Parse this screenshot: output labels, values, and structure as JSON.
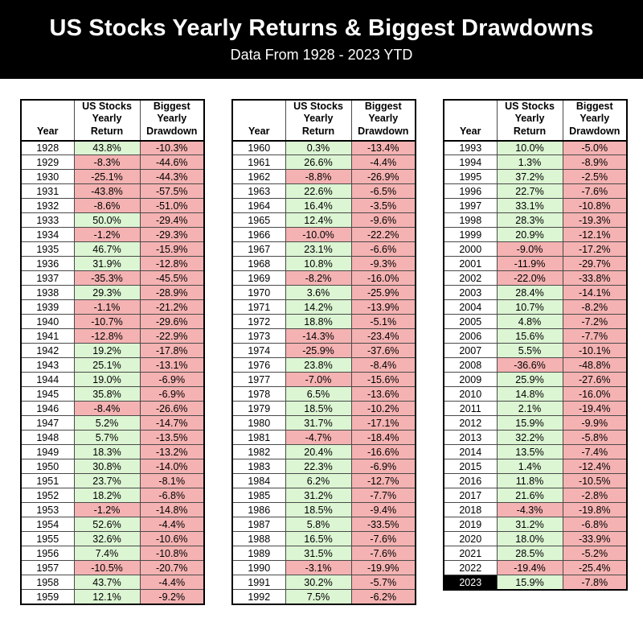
{
  "header": {
    "title": "US Stocks Yearly Returns & Biggest Drawdowns",
    "subtitle": "Data From 1928 - 2023 YTD"
  },
  "colors": {
    "banner_bg": "#000000",
    "banner_text": "#ffffff",
    "positive_bg": "#dcf5d3",
    "negative_bg": "#f5b2b2",
    "highlight_bg": "#000000",
    "highlight_text": "#ffffff"
  },
  "chart_data": {
    "type": "table",
    "title": "US Stocks Yearly Returns & Biggest Drawdowns",
    "subtitle": "Data From 1928 - 2023 YTD",
    "columns": [
      "Year",
      "US Stocks Yearly Return",
      "Biggest Yearly Drawdown"
    ],
    "column_headers_display": [
      "Year",
      "US Stocks\nYearly\nReturn",
      "Biggest\nYearly\nDrawdown"
    ],
    "highlight_year": "2023",
    "tables": [
      {
        "rows": [
          [
            "1928",
            "43.8%",
            "-10.3%"
          ],
          [
            "1929",
            "-8.3%",
            "-44.6%"
          ],
          [
            "1930",
            "-25.1%",
            "-44.3%"
          ],
          [
            "1931",
            "-43.8%",
            "-57.5%"
          ],
          [
            "1932",
            "-8.6%",
            "-51.0%"
          ],
          [
            "1933",
            "50.0%",
            "-29.4%"
          ],
          [
            "1934",
            "-1.2%",
            "-29.3%"
          ],
          [
            "1935",
            "46.7%",
            "-15.9%"
          ],
          [
            "1936",
            "31.9%",
            "-12.8%"
          ],
          [
            "1937",
            "-35.3%",
            "-45.5%"
          ],
          [
            "1938",
            "29.3%",
            "-28.9%"
          ],
          [
            "1939",
            "-1.1%",
            "-21.2%"
          ],
          [
            "1940",
            "-10.7%",
            "-29.6%"
          ],
          [
            "1941",
            "-12.8%",
            "-22.9%"
          ],
          [
            "1942",
            "19.2%",
            "-17.8%"
          ],
          [
            "1943",
            "25.1%",
            "-13.1%"
          ],
          [
            "1944",
            "19.0%",
            "-6.9%"
          ],
          [
            "1945",
            "35.8%",
            "-6.9%"
          ],
          [
            "1946",
            "-8.4%",
            "-26.6%"
          ],
          [
            "1947",
            "5.2%",
            "-14.7%"
          ],
          [
            "1948",
            "5.7%",
            "-13.5%"
          ],
          [
            "1949",
            "18.3%",
            "-13.2%"
          ],
          [
            "1950",
            "30.8%",
            "-14.0%"
          ],
          [
            "1951",
            "23.7%",
            "-8.1%"
          ],
          [
            "1952",
            "18.2%",
            "-6.8%"
          ],
          [
            "1953",
            "-1.2%",
            "-14.8%"
          ],
          [
            "1954",
            "52.6%",
            "-4.4%"
          ],
          [
            "1955",
            "32.6%",
            "-10.6%"
          ],
          [
            "1956",
            "7.4%",
            "-10.8%"
          ],
          [
            "1957",
            "-10.5%",
            "-20.7%"
          ],
          [
            "1958",
            "43.7%",
            "-4.4%"
          ],
          [
            "1959",
            "12.1%",
            "-9.2%"
          ]
        ]
      },
      {
        "rows": [
          [
            "1960",
            "0.3%",
            "-13.4%"
          ],
          [
            "1961",
            "26.6%",
            "-4.4%"
          ],
          [
            "1962",
            "-8.8%",
            "-26.9%"
          ],
          [
            "1963",
            "22.6%",
            "-6.5%"
          ],
          [
            "1964",
            "16.4%",
            "-3.5%"
          ],
          [
            "1965",
            "12.4%",
            "-9.6%"
          ],
          [
            "1966",
            "-10.0%",
            "-22.2%"
          ],
          [
            "1967",
            "23.1%",
            "-6.6%"
          ],
          [
            "1968",
            "10.8%",
            "-9.3%"
          ],
          [
            "1969",
            "-8.2%",
            "-16.0%"
          ],
          [
            "1970",
            "3.6%",
            "-25.9%"
          ],
          [
            "1971",
            "14.2%",
            "-13.9%"
          ],
          [
            "1972",
            "18.8%",
            "-5.1%"
          ],
          [
            "1973",
            "-14.3%",
            "-23.4%"
          ],
          [
            "1974",
            "-25.9%",
            "-37.6%"
          ],
          [
            "1976",
            "23.8%",
            "-8.4%"
          ],
          [
            "1977",
            "-7.0%",
            "-15.6%"
          ],
          [
            "1978",
            "6.5%",
            "-13.6%"
          ],
          [
            "1979",
            "18.5%",
            "-10.2%"
          ],
          [
            "1980",
            "31.7%",
            "-17.1%"
          ],
          [
            "1981",
            "-4.7%",
            "-18.4%"
          ],
          [
            "1982",
            "20.4%",
            "-16.6%"
          ],
          [
            "1983",
            "22.3%",
            "-6.9%"
          ],
          [
            "1984",
            "6.2%",
            "-12.7%"
          ],
          [
            "1985",
            "31.2%",
            "-7.7%"
          ],
          [
            "1986",
            "18.5%",
            "-9.4%"
          ],
          [
            "1987",
            "5.8%",
            "-33.5%"
          ],
          [
            "1988",
            "16.5%",
            "-7.6%"
          ],
          [
            "1989",
            "31.5%",
            "-7.6%"
          ],
          [
            "1990",
            "-3.1%",
            "-19.9%"
          ],
          [
            "1991",
            "30.2%",
            "-5.7%"
          ],
          [
            "1992",
            "7.5%",
            "-6.2%"
          ]
        ]
      },
      {
        "rows": [
          [
            "1993",
            "10.0%",
            "-5.0%"
          ],
          [
            "1994",
            "1.3%",
            "-8.9%"
          ],
          [
            "1995",
            "37.2%",
            "-2.5%"
          ],
          [
            "1996",
            "22.7%",
            "-7.6%"
          ],
          [
            "1997",
            "33.1%",
            "-10.8%"
          ],
          [
            "1998",
            "28.3%",
            "-19.3%"
          ],
          [
            "1999",
            "20.9%",
            "-12.1%"
          ],
          [
            "2000",
            "-9.0%",
            "-17.2%"
          ],
          [
            "2001",
            "-11.9%",
            "-29.7%"
          ],
          [
            "2002",
            "-22.0%",
            "-33.8%"
          ],
          [
            "2003",
            "28.4%",
            "-14.1%"
          ],
          [
            "2004",
            "10.7%",
            "-8.2%"
          ],
          [
            "2005",
            "4.8%",
            "-7.2%"
          ],
          [
            "2006",
            "15.6%",
            "-7.7%"
          ],
          [
            "2007",
            "5.5%",
            "-10.1%"
          ],
          [
            "2008",
            "-36.6%",
            "-48.8%"
          ],
          [
            "2009",
            "25.9%",
            "-27.6%"
          ],
          [
            "2010",
            "14.8%",
            "-16.0%"
          ],
          [
            "2011",
            "2.1%",
            "-19.4%"
          ],
          [
            "2012",
            "15.9%",
            "-9.9%"
          ],
          [
            "2013",
            "32.2%",
            "-5.8%"
          ],
          [
            "2014",
            "13.5%",
            "-7.4%"
          ],
          [
            "2015",
            "1.4%",
            "-12.4%"
          ],
          [
            "2016",
            "11.8%",
            "-10.5%"
          ],
          [
            "2017",
            "21.6%",
            "-2.8%"
          ],
          [
            "2018",
            "-4.3%",
            "-19.8%"
          ],
          [
            "2019",
            "31.2%",
            "-6.8%"
          ],
          [
            "2020",
            "18.0%",
            "-33.9%"
          ],
          [
            "2021",
            "28.5%",
            "-5.2%"
          ],
          [
            "2022",
            "-19.4%",
            "-25.4%"
          ],
          [
            "2023",
            "15.9%",
            "-7.8%"
          ]
        ]
      }
    ]
  }
}
